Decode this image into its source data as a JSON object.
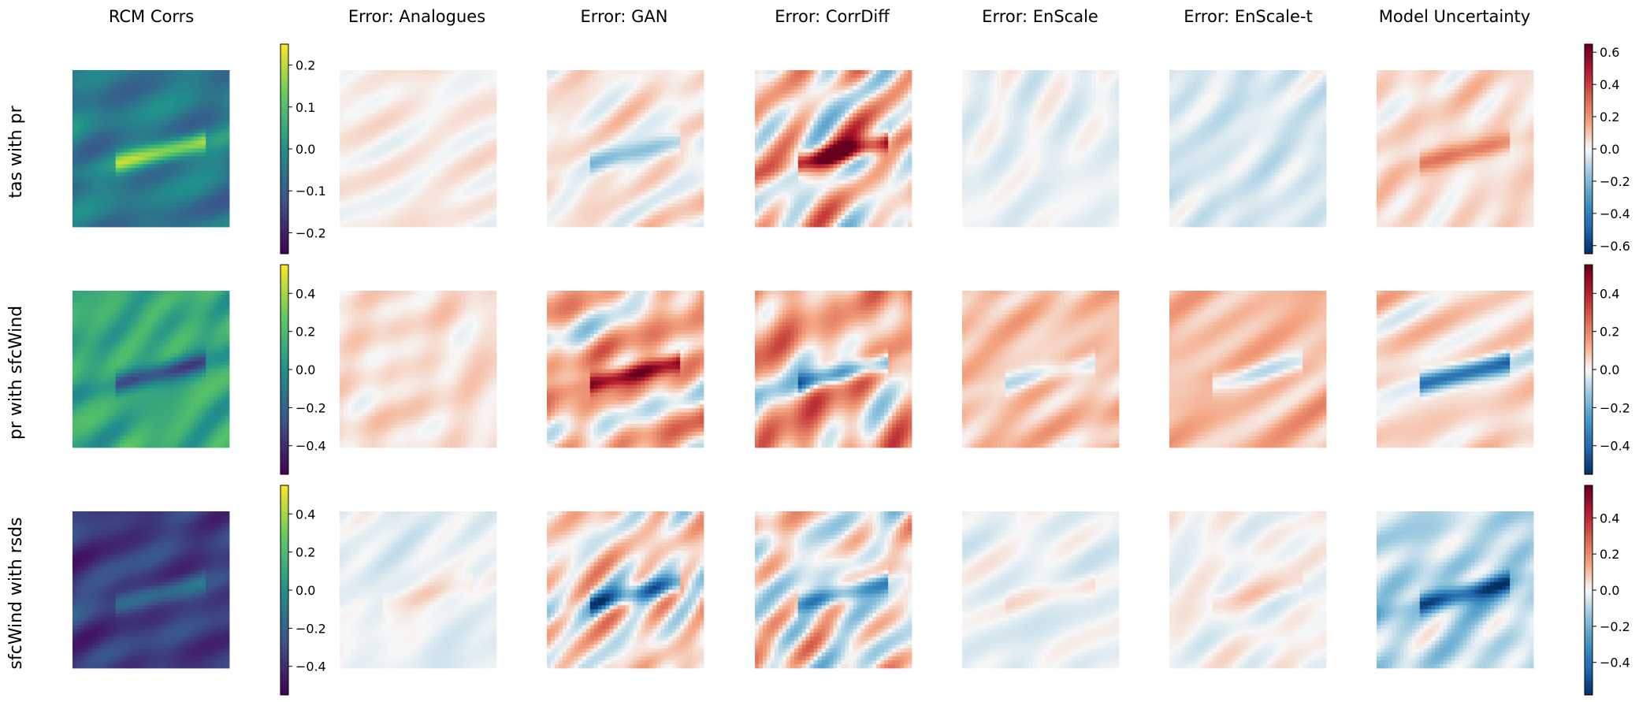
{
  "columns": [
    "RCM Corrs",
    "Error: Analogues",
    "Error: GAN",
    "Error: CorrDiff",
    "Error: EnScale",
    "Error: EnScale-t",
    "Model Uncertainty"
  ],
  "rows": [
    "tas with pr",
    "pr with sfcWind",
    "sfcWind with rsds"
  ],
  "colors": {
    "viridis": [
      "#440154",
      "#3b528b",
      "#21918c",
      "#5ec962",
      "#fde725"
    ],
    "rdbu": [
      "#053061",
      "#2166ac",
      "#4393c3",
      "#92c5de",
      "#f7f7f7",
      "#f4a582",
      "#d6604d",
      "#b2182b",
      "#67001f"
    ]
  },
  "chart_data": {
    "type": "heatmap",
    "title": "",
    "column_titles": [
      "RCM Corrs",
      "Error: Analogues",
      "Error: GAN",
      "Error: CorrDiff",
      "Error: EnScale",
      "Error: EnScale-t",
      "Model Uncertainty"
    ],
    "row_labels": [
      "tas with pr",
      "pr with sfcWind",
      "sfcWind with rsds"
    ],
    "colorbars": [
      {
        "row": "tas with pr",
        "cmap": "viridis",
        "range": [
          -0.25,
          0.25
        ],
        "ticks": [
          "0.2",
          "0.1",
          "0.0",
          "−0.1",
          "−0.2"
        ],
        "tick_values": [
          0.2,
          0.1,
          0.0,
          -0.1,
          -0.2
        ]
      },
      {
        "row": "tas with pr",
        "cmap": "RdBu_r",
        "range": [
          -0.65,
          0.65
        ],
        "ticks": [
          "0.6",
          "0.4",
          "0.2",
          "0.0",
          "−0.2",
          "−0.4",
          "−0.6"
        ],
        "tick_values": [
          0.6,
          0.4,
          0.2,
          0.0,
          -0.2,
          -0.4,
          -0.6
        ]
      },
      {
        "row": "pr with sfcWind",
        "cmap": "viridis",
        "range": [
          -0.55,
          0.55
        ],
        "ticks": [
          "0.4",
          "0.2",
          "0.0",
          "−0.2",
          "−0.4"
        ],
        "tick_values": [
          0.4,
          0.2,
          0.0,
          -0.2,
          -0.4
        ]
      },
      {
        "row": "pr with sfcWind",
        "cmap": "RdBu_r",
        "range": [
          -0.55,
          0.55
        ],
        "ticks": [
          "0.4",
          "0.2",
          "0.0",
          "−0.2",
          "−0.4"
        ],
        "tick_values": [
          0.4,
          0.2,
          0.0,
          -0.2,
          -0.4
        ]
      },
      {
        "row": "sfcWind with rsds",
        "cmap": "viridis",
        "range": [
          -0.55,
          0.55
        ],
        "ticks": [
          "0.4",
          "0.2",
          "0.0",
          "−0.2",
          "−0.4"
        ],
        "tick_values": [
          0.4,
          0.2,
          0.0,
          -0.2,
          -0.4
        ]
      },
      {
        "row": "sfcWind with rsds",
        "cmap": "RdBu_r",
        "range": [
          -0.58,
          0.58
        ],
        "ticks": [
          "0.4",
          "0.2",
          "0.0",
          "−0.2",
          "−0.4"
        ],
        "tick_values": [
          0.4,
          0.2,
          0.0,
          -0.2,
          -0.4
        ]
      }
    ],
    "panels": [
      {
        "row": "tas with pr",
        "column": "RCM Corrs",
        "cmap": "viridis",
        "mean": -0.05,
        "spread": 0.1,
        "feature": 0.22
      },
      {
        "row": "tas with pr",
        "column": "Error: Analogues",
        "cmap": "RdBu_r",
        "mean": 0.02,
        "spread": 0.07,
        "feature": 0.0
      },
      {
        "row": "tas with pr",
        "column": "Error: GAN",
        "cmap": "RdBu_r",
        "mean": 0.03,
        "spread": 0.12,
        "feature": -0.2
      },
      {
        "row": "tas with pr",
        "column": "Error: CorrDiff",
        "cmap": "RdBu_r",
        "mean": 0.05,
        "spread": 0.35,
        "feature": 0.6
      },
      {
        "row": "tas with pr",
        "column": "Error: EnScale",
        "cmap": "RdBu_r",
        "mean": -0.02,
        "spread": 0.06,
        "feature": 0.0
      },
      {
        "row": "tas with pr",
        "column": "Error: EnScale-t",
        "cmap": "RdBu_r",
        "mean": -0.05,
        "spread": 0.06,
        "feature": 0.0
      },
      {
        "row": "tas with pr",
        "column": "Model Uncertainty",
        "cmap": "RdBu_r",
        "mean": 0.05,
        "spread": 0.1,
        "feature": 0.2
      },
      {
        "row": "pr with sfcWind",
        "column": "RCM Corrs",
        "cmap": "viridis",
        "mean": 0.12,
        "spread": 0.15,
        "feature": -0.4
      },
      {
        "row": "pr with sfcWind",
        "column": "Error: Analogues",
        "cmap": "RdBu_r",
        "mean": 0.04,
        "spread": 0.07,
        "feature": 0.0
      },
      {
        "row": "pr with sfcWind",
        "column": "Error: GAN",
        "cmap": "RdBu_r",
        "mean": 0.08,
        "spread": 0.2,
        "feature": 0.45
      },
      {
        "row": "pr with sfcWind",
        "column": "Error: CorrDiff",
        "cmap": "RdBu_r",
        "mean": 0.12,
        "spread": 0.3,
        "feature": -0.4
      },
      {
        "row": "pr with sfcWind",
        "column": "Error: EnScale",
        "cmap": "RdBu_r",
        "mean": 0.09,
        "spread": 0.09,
        "feature": -0.15
      },
      {
        "row": "pr with sfcWind",
        "column": "Error: EnScale-t",
        "cmap": "RdBu_r",
        "mean": 0.1,
        "spread": 0.09,
        "feature": -0.15
      },
      {
        "row": "pr with sfcWind",
        "column": "Model Uncertainty",
        "cmap": "RdBu_r",
        "mean": 0.05,
        "spread": 0.15,
        "feature": -0.45
      },
      {
        "row": "sfcWind with rsds",
        "column": "RCM Corrs",
        "cmap": "viridis",
        "mean": -0.35,
        "spread": 0.12,
        "feature": 0.2
      },
      {
        "row": "sfcWind with rsds",
        "column": "Error: Analogues",
        "cmap": "RdBu_r",
        "mean": -0.02,
        "spread": 0.06,
        "feature": 0.05
      },
      {
        "row": "sfcWind with rsds",
        "column": "Error: GAN",
        "cmap": "RdBu_r",
        "mean": 0.04,
        "spread": 0.2,
        "feature": -0.4
      },
      {
        "row": "sfcWind with rsds",
        "column": "Error: CorrDiff",
        "cmap": "RdBu_r",
        "mean": 0.02,
        "spread": 0.25,
        "feature": -0.4
      },
      {
        "row": "sfcWind with rsds",
        "column": "Error: EnScale",
        "cmap": "RdBu_r",
        "mean": -0.02,
        "spread": 0.06,
        "feature": 0.05
      },
      {
        "row": "sfcWind with rsds",
        "column": "Error: EnScale-t",
        "cmap": "RdBu_r",
        "mean": 0.0,
        "spread": 0.06,
        "feature": 0.05
      },
      {
        "row": "sfcWind with rsds",
        "column": "Model Uncertainty",
        "cmap": "RdBu_r",
        "mean": -0.08,
        "spread": 0.15,
        "feature": -0.45
      }
    ]
  }
}
